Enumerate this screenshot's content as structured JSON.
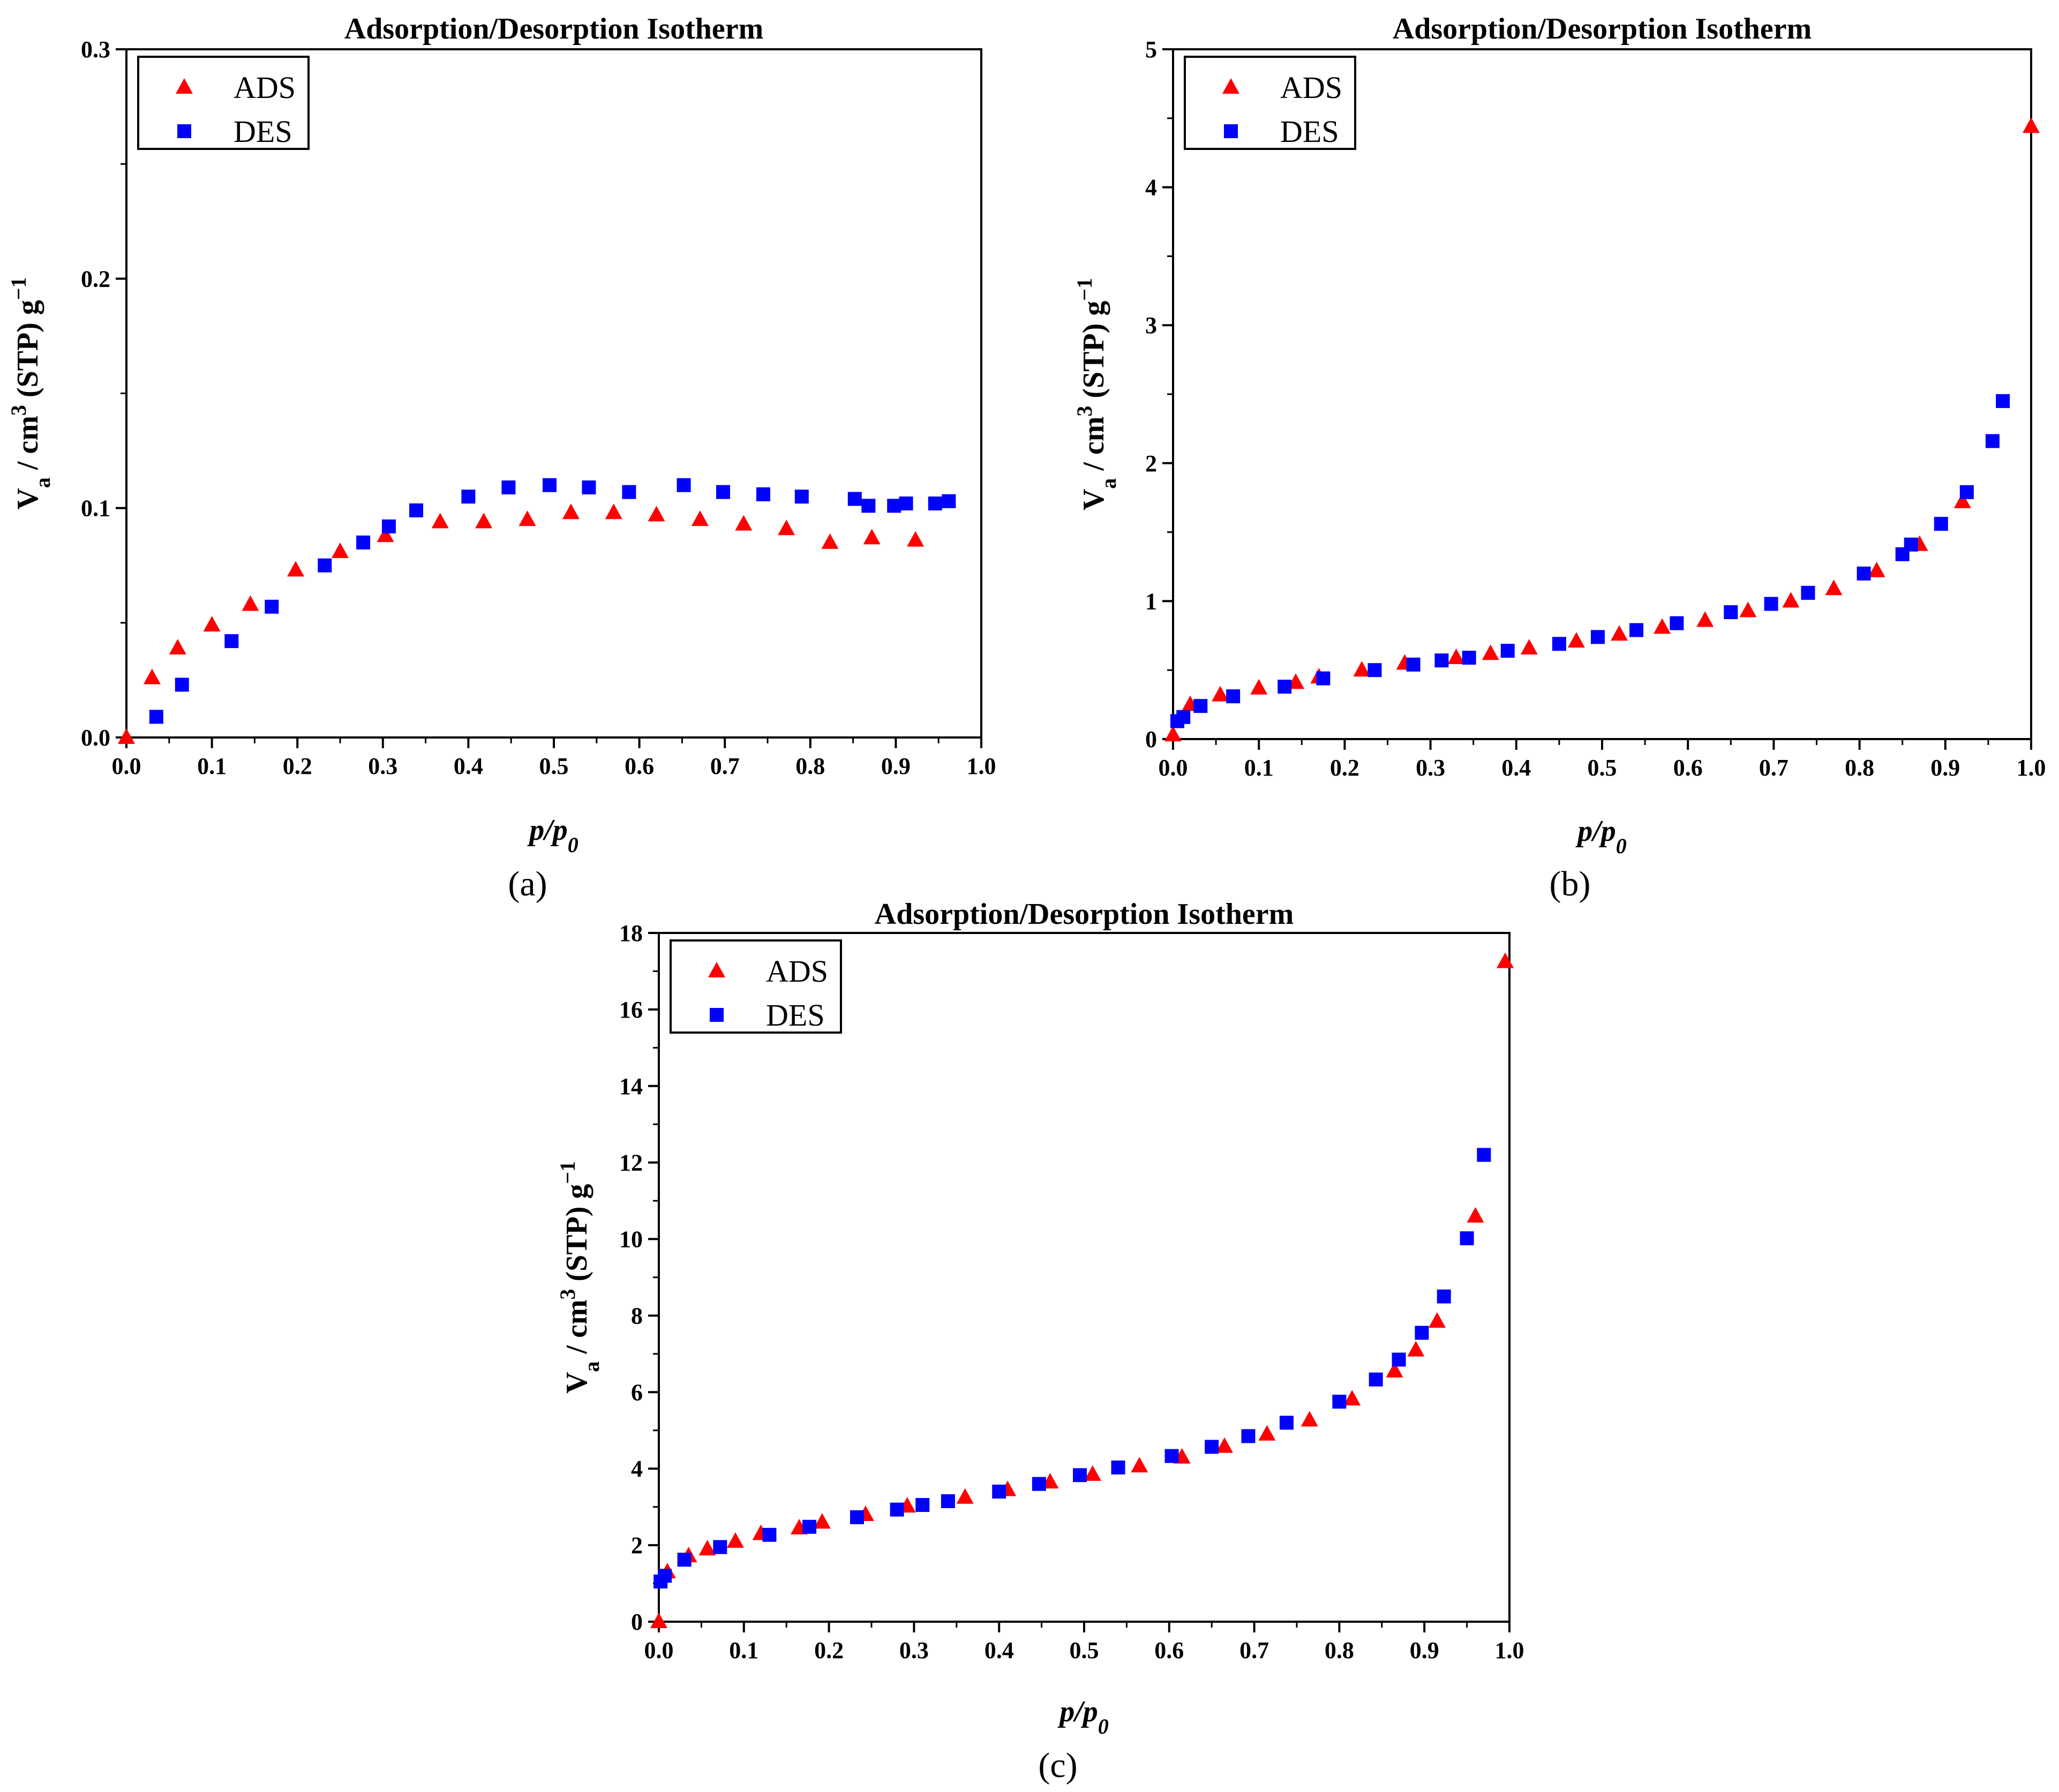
{
  "chart_data": [
    {
      "id": "a",
      "type": "scatter",
      "title": "Adsorption/Desorption Isotherm",
      "caption": "(a)",
      "xlabel_main": "p/p",
      "xlabel_sub": "0",
      "ylabel_parts": [
        "V",
        "a",
        " / cm",
        "3",
        " (STP) g",
        "−1"
      ],
      "xlim": [
        0.0,
        1.0
      ],
      "ylim": [
        0.0,
        0.3
      ],
      "xticks": [
        "0.0",
        "0.1",
        "0.2",
        "0.3",
        "0.4",
        "0.5",
        "0.6",
        "0.7",
        "0.8",
        "0.9",
        "1.0"
      ],
      "yticks": [
        "0.0",
        "0.1",
        "0.2",
        "0.3"
      ],
      "legend_position": "top-left",
      "series": [
        {
          "name": "ADS",
          "marker": "triangle",
          "color": "#ff0000",
          "x": [
            0.0,
            0.03,
            0.06,
            0.1,
            0.145,
            0.198,
            0.25,
            0.303,
            0.367,
            0.418,
            0.469,
            0.52,
            0.57,
            0.62,
            0.671,
            0.722,
            0.772,
            0.823,
            0.872,
            0.923
          ],
          "y": [
            0.0,
            0.026,
            0.039,
            0.049,
            0.058,
            0.073,
            0.081,
            0.088,
            0.094,
            0.094,
            0.095,
            0.098,
            0.098,
            0.097,
            0.095,
            0.093,
            0.091,
            0.085,
            0.087,
            0.086
          ]
        },
        {
          "name": "DES",
          "marker": "square",
          "color": "#0000ff",
          "x": [
            0.035,
            0.065,
            0.123,
            0.17,
            0.232,
            0.277,
            0.307,
            0.339,
            0.4,
            0.447,
            0.495,
            0.541,
            0.588,
            0.652,
            0.698,
            0.745,
            0.79,
            0.852,
            0.868,
            0.898,
            0.912,
            0.946,
            0.962
          ],
          "y": [
            0.009,
            0.023,
            0.042,
            0.057,
            0.075,
            0.085,
            0.092,
            0.099,
            0.105,
            0.109,
            0.11,
            0.109,
            0.107,
            0.11,
            0.107,
            0.106,
            0.105,
            0.104,
            0.101,
            0.101,
            0.102,
            0.102,
            0.103
          ]
        }
      ]
    },
    {
      "id": "b",
      "type": "scatter",
      "title": "Adsorption/Desorption Isotherm",
      "caption": "(b)",
      "xlabel_main": "p/p",
      "xlabel_sub": "0",
      "ylabel_parts": [
        "V",
        "a",
        " / cm",
        "3",
        " (STP) g",
        "−1"
      ],
      "xlim": [
        0.0,
        1.0
      ],
      "ylim": [
        0,
        5
      ],
      "xticks": [
        "0.0",
        "0.1",
        "0.2",
        "0.3",
        "0.4",
        "0.5",
        "0.6",
        "0.7",
        "0.8",
        "0.9",
        "1.0"
      ],
      "yticks": [
        "0",
        "1",
        "2",
        "3",
        "4",
        "5"
      ],
      "legend_position": "top-left",
      "series": [
        {
          "name": "ADS",
          "marker": "triangle",
          "color": "#ff0000",
          "x": [
            0.0,
            0.02,
            0.055,
            0.1,
            0.143,
            0.17,
            0.22,
            0.27,
            0.33,
            0.37,
            0.415,
            0.47,
            0.52,
            0.57,
            0.62,
            0.67,
            0.72,
            0.77,
            0.82,
            0.87,
            0.92,
            1.0
          ],
          "y": [
            0.03,
            0.25,
            0.32,
            0.37,
            0.41,
            0.45,
            0.5,
            0.55,
            0.59,
            0.62,
            0.66,
            0.71,
            0.76,
            0.81,
            0.86,
            0.93,
            1.0,
            1.09,
            1.22,
            1.41,
            1.72,
            4.44
          ]
        },
        {
          "name": "DES",
          "marker": "square",
          "color": "#0000ff",
          "x": [
            0.005,
            0.012,
            0.032,
            0.07,
            0.13,
            0.175,
            0.235,
            0.28,
            0.313,
            0.345,
            0.39,
            0.45,
            0.495,
            0.54,
            0.587,
            0.65,
            0.697,
            0.74,
            0.805,
            0.85,
            0.86,
            0.895,
            0.925,
            0.955,
            0.967
          ],
          "y": [
            0.13,
            0.16,
            0.24,
            0.31,
            0.38,
            0.44,
            0.5,
            0.54,
            0.57,
            0.59,
            0.64,
            0.69,
            0.74,
            0.79,
            0.84,
            0.92,
            0.98,
            1.06,
            1.2,
            1.34,
            1.41,
            1.56,
            1.79,
            2.16,
            2.45
          ]
        }
      ]
    },
    {
      "id": "c",
      "type": "scatter",
      "title": "Adsorption/Desorption Isotherm",
      "caption": "(c)",
      "xlabel_main": "p/p",
      "xlabel_sub": "0",
      "ylabel_parts": [
        "V",
        "a",
        " / cm",
        "3",
        " (STP) g",
        "−1"
      ],
      "xlim": [
        0.0,
        1.0
      ],
      "ylim": [
        0,
        18
      ],
      "xticks": [
        "0.0",
        "0.1",
        "0.2",
        "0.3",
        "0.4",
        "0.5",
        "0.6",
        "0.7",
        "0.8",
        "0.9",
        "1.0"
      ],
      "yticks": [
        "0",
        "2",
        "4",
        "6",
        "8",
        "10",
        "12",
        "14",
        "16",
        "18"
      ],
      "legend_position": "top-left",
      "series": [
        {
          "name": "ADS",
          "marker": "triangle",
          "color": "#ff0000",
          "x": [
            0.0,
            0.01,
            0.035,
            0.057,
            0.09,
            0.12,
            0.165,
            0.192,
            0.243,
            0.292,
            0.36,
            0.41,
            0.46,
            0.51,
            0.565,
            0.615,
            0.665,
            0.715,
            0.765,
            0.815,
            0.865,
            0.89,
            0.915,
            0.96,
            0.995
          ],
          "y": [
            0.0,
            1.3,
            1.72,
            1.9,
            2.1,
            2.3,
            2.45,
            2.6,
            2.8,
            3.02,
            3.25,
            3.45,
            3.65,
            3.85,
            4.07,
            4.3,
            4.58,
            4.9,
            5.27,
            5.82,
            6.55,
            7.1,
            7.85,
            10.6,
            17.25
          ]
        },
        {
          "name": "DES",
          "marker": "square",
          "color": "#0000ff",
          "x": [
            0.002,
            0.007,
            0.03,
            0.072,
            0.13,
            0.177,
            0.233,
            0.28,
            0.31,
            0.34,
            0.4,
            0.447,
            0.495,
            0.54,
            0.603,
            0.65,
            0.693,
            0.738,
            0.8,
            0.843,
            0.87,
            0.897,
            0.923,
            0.95,
            0.97
          ],
          "y": [
            1.05,
            1.2,
            1.62,
            1.95,
            2.27,
            2.48,
            2.73,
            2.93,
            3.05,
            3.15,
            3.4,
            3.6,
            3.83,
            4.03,
            4.33,
            4.57,
            4.85,
            5.2,
            5.75,
            6.33,
            6.85,
            7.55,
            8.5,
            10.02,
            12.2
          ]
        }
      ]
    }
  ]
}
